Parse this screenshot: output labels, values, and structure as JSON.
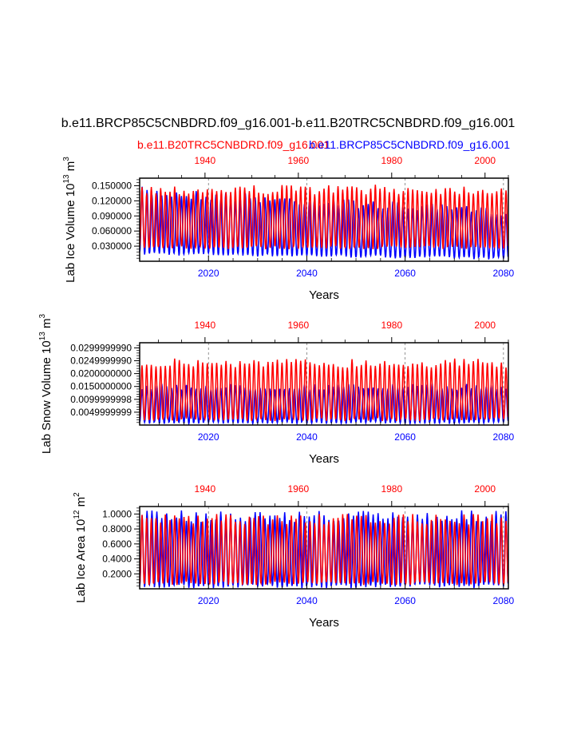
{
  "figure": {
    "title": "b.e11.BRCP85C5CNBDRD.f09_g16.001-b.e11.B20TRC5CNBDRD.f09_g16.001",
    "legend_red": "b.e11.B20TRC5CNBDRD.f09_g16.001",
    "legend_blue": "b.e11.BRCP85C5CNBDRD.f09_g16.001",
    "color_red": "#ff0000",
    "color_blue": "#0000ff"
  },
  "chart_data": [
    {
      "type": "line",
      "ylabel": "Lab Ice Volume 10",
      "ylabel_exp": "13",
      "ylabel_unit": " m",
      "ylabel_unit_exp": "3",
      "xlabel": "Years",
      "bottom_axis": {
        "range": [
          2006,
          2081
        ],
        "ticks": [
          "2020",
          "2040",
          "2060",
          "2080"
        ],
        "tick_values": [
          2020,
          2040,
          2060,
          2080
        ]
      },
      "top_axis": {
        "range": [
          1926,
          2005
        ],
        "ticks": [
          "1940",
          "1960",
          "1980",
          "2000"
        ],
        "tick_values": [
          1940,
          1960,
          1980,
          2000
        ]
      },
      "ylim": [
        0.0,
        0.165
      ],
      "yticks": [
        "0.030000",
        "0.060000",
        "0.090000",
        "0.120000",
        "0.150000"
      ],
      "ytick_values": [
        0.03,
        0.06,
        0.09,
        0.12,
        0.15
      ],
      "series": [
        {
          "name": "b.e11.B20TRC5CNBDRD.f09_g16.001",
          "color": "red",
          "axis": "top",
          "max": 0.152,
          "min": 0.024,
          "note": "seasonal cycle, 12 samples/year"
        },
        {
          "name": "b.e11.BRCP85C5CNBDRD.f09_g16.001",
          "color": "blue",
          "axis": "bottom",
          "max_start": 0.148,
          "max_end": 0.105,
          "min_start": 0.012,
          "min_end": 0.003,
          "note": "seasonal cycle, 12 samples/year"
        }
      ]
    },
    {
      "type": "line",
      "ylabel": "Lab Snow Volume 10",
      "ylabel_exp": "13",
      "ylabel_unit": " m",
      "ylabel_unit_exp": "3",
      "xlabel": "Years",
      "bottom_axis": {
        "range": [
          2006,
          2081
        ],
        "ticks": [
          "2020",
          "2040",
          "2060",
          "2080"
        ],
        "tick_values": [
          2020,
          2040,
          2060,
          2080
        ]
      },
      "top_axis": {
        "range": [
          1926,
          2005
        ],
        "ticks": [
          "1940",
          "1960",
          "1980",
          "2000"
        ],
        "tick_values": [
          1940,
          1960,
          1980,
          2000
        ]
      },
      "ylim": [
        0.0,
        0.032
      ],
      "yticks": [
        "0.0049999999",
        "0.0099999998",
        "0.0150000000",
        "0.0200000000",
        "0.0249999990",
        "0.0299999990"
      ],
      "ytick_values": [
        0.005,
        0.01,
        0.015,
        0.02,
        0.025,
        0.03
      ],
      "series": [
        {
          "name": "b.e11.B20TRC5CNBDRD.f09_g16.001",
          "color": "red",
          "axis": "top",
          "max": 0.026,
          "min": 0.0015
        },
        {
          "name": "b.e11.BRCP85C5CNBDRD.f09_g16.001",
          "color": "blue",
          "axis": "bottom",
          "max": 0.016,
          "min": 0.0005
        }
      ]
    },
    {
      "type": "line",
      "ylabel": "Lab Ice Area 10",
      "ylabel_exp": "12",
      "ylabel_unit": " m",
      "ylabel_unit_exp": "2",
      "xlabel": "Years",
      "bottom_axis": {
        "range": [
          2006,
          2081
        ],
        "ticks": [
          "2020",
          "2040",
          "2060",
          "2080"
        ],
        "tick_values": [
          2020,
          2040,
          2060,
          2080
        ]
      },
      "top_axis": {
        "range": [
          1926,
          2005
        ],
        "ticks": [
          "1940",
          "1960",
          "1980",
          "2000"
        ],
        "tick_values": [
          1940,
          1960,
          1980,
          2000
        ]
      },
      "ylim": [
        0.0,
        1.1
      ],
      "yticks": [
        "0.2000",
        "0.4000",
        "0.6000",
        "0.8000",
        "1.0000"
      ],
      "ytick_values": [
        0.2,
        0.4,
        0.6,
        0.8,
        1.0
      ],
      "series": [
        {
          "name": "b.e11.B20TRC5CNBDRD.f09_g16.001",
          "color": "red",
          "axis": "top",
          "max": 1.0,
          "min": 0.05
        },
        {
          "name": "b.e11.BRCP85C5CNBDRD.f09_g16.001",
          "color": "blue",
          "axis": "bottom",
          "max": 1.05,
          "min": 0.01
        }
      ]
    }
  ]
}
